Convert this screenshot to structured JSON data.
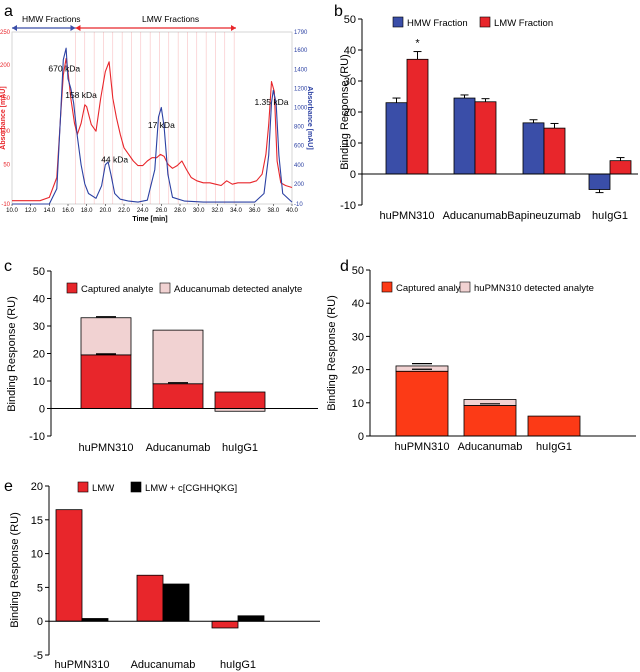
{
  "panels": {
    "a": "a",
    "b": "b",
    "c": "c",
    "d": "d",
    "e": "e"
  },
  "colors": {
    "red": "#e8262b",
    "blue": "#3a4ea8",
    "pink": "#f1d2d2",
    "orange_red": "#fc3a16",
    "black": "#000000",
    "chrom_red": "#e8262b",
    "chrom_blue": "#2c41a3"
  },
  "chart_data": [
    {
      "id": "a",
      "type": "line",
      "title": "",
      "xlabel": "Time [min]",
      "ylabel_left": "Absorbance [mAU]",
      "ylabel_right": "Absorbance [mAU]",
      "xlim": [
        10.0,
        40.0
      ],
      "ylim_left": [
        -10,
        250
      ],
      "ylim_right": [
        -10,
        1790
      ],
      "x_ticks": [
        "10.0",
        "12.0",
        "14.0",
        "16.0",
        "18.0",
        "20.0",
        "22.0",
        "24.0",
        "26.0",
        "28.0",
        "30.0",
        "32.0",
        "34.0",
        "36.0",
        "38.0",
        "40.0"
      ],
      "y_ticks_left": [
        "-10",
        "50",
        "100",
        "150",
        "200",
        "250"
      ],
      "y_ticks_right": [
        "-10",
        "200",
        "400",
        "600",
        "800",
        "1000",
        "1200",
        "1400",
        "1600",
        "1790"
      ],
      "fraction_labels": {
        "hmw": "HMW Fractions",
        "lmw": "LMW Fractions"
      },
      "fraction_ranges": {
        "hmw": [
          10.0,
          16.8
        ],
        "lmw": [
          16.8,
          34.0
        ]
      },
      "fraction_lines_x": [
        16.8,
        17.8,
        18.8,
        19.8,
        20.8,
        21.8,
        22.8,
        23.8,
        24.8,
        25.8,
        26.8,
        27.8,
        28.8,
        29.8,
        30.8,
        31.8,
        32.8,
        33.8
      ],
      "annotations": [
        {
          "text": "670 kDa",
          "x": 15.6,
          "y": 190
        },
        {
          "text": "158 kDa",
          "x": 17.4,
          "y": 150
        },
        {
          "text": "44 kDa",
          "x": 21.0,
          "y": 53
        },
        {
          "text": "17 kDa",
          "x": 26.0,
          "y": 105
        },
        {
          "text": "1.35 kDa",
          "x": 37.8,
          "y": 140
        }
      ],
      "series": [
        {
          "name": "Absorbance (red, left axis)",
          "color": "#e8262b",
          "axis": "left",
          "x": [
            10.0,
            13.0,
            14.0,
            14.8,
            15.2,
            15.5,
            15.8,
            16.0,
            16.3,
            16.7,
            17.0,
            17.4,
            17.8,
            18.0,
            18.5,
            19.0,
            19.5,
            20.0,
            20.4,
            20.8,
            21.2,
            21.6,
            22.0,
            22.5,
            23.0,
            23.5,
            24.0,
            24.5,
            25.0,
            25.5,
            25.9,
            26.3,
            26.7,
            27.2,
            27.7,
            28.2,
            28.7,
            29.2,
            29.8,
            30.5,
            31.2,
            31.8,
            32.4,
            33.0,
            33.6,
            34.2,
            34.8,
            35.5,
            36.2,
            36.8,
            37.2,
            37.5,
            37.8,
            38.1,
            38.4,
            38.8,
            39.3,
            40.0
          ],
          "y": [
            -5,
            -5,
            0,
            30,
            120,
            185,
            210,
            190,
            150,
            112,
            95,
            112,
            140,
            137,
            110,
            100,
            150,
            190,
            205,
            150,
            120,
            95,
            75,
            65,
            55,
            48,
            48,
            55,
            60,
            60,
            65,
            62,
            50,
            44,
            48,
            55,
            42,
            30,
            25,
            22,
            22,
            20,
            18,
            25,
            20,
            22,
            22,
            22,
            25,
            35,
            65,
            110,
            175,
            160,
            55,
            22,
            18,
            15
          ]
        },
        {
          "name": "Absorbance (blue, right axis)",
          "color": "#2c41a3",
          "axis": "right",
          "x": [
            10.0,
            14.0,
            14.8,
            15.2,
            15.5,
            15.8,
            16.0,
            16.3,
            16.6,
            17.0,
            17.4,
            17.8,
            18.2,
            19.0,
            19.6,
            20.0,
            20.3,
            20.6,
            21.0,
            21.6,
            22.5,
            23.5,
            24.5,
            25.3,
            25.7,
            26.0,
            26.3,
            26.7,
            27.2,
            28.5,
            30.5,
            33.0,
            36.0,
            37.0,
            37.5,
            37.8,
            38.0,
            38.3,
            38.6,
            39.0,
            40.0
          ],
          "y": [
            -10,
            -10,
            150,
            900,
            1500,
            1620,
            1300,
            1200,
            1050,
            700,
            400,
            200,
            100,
            50,
            180,
            400,
            430,
            300,
            100,
            40,
            20,
            10,
            30,
            350,
            900,
            1000,
            800,
            300,
            60,
            20,
            10,
            10,
            10,
            100,
            500,
            1050,
            1180,
            1050,
            500,
            100,
            10
          ]
        }
      ]
    },
    {
      "id": "b",
      "type": "bar",
      "title": "",
      "xlabel": "",
      "ylabel": "Binding Response (RU)",
      "ylim": [
        -10,
        50
      ],
      "y_ticks": [
        "-10",
        "0",
        "10",
        "20",
        "30",
        "40",
        "50"
      ],
      "categories": [
        "huPMN310",
        "Aducanumab",
        "Bapineuzumab",
        "huIgG1"
      ],
      "series": [
        {
          "name": "HMW Fraction",
          "color": "#3a4ea8",
          "values": [
            23,
            24.5,
            16.5,
            -5
          ],
          "errors": [
            1.5,
            1.0,
            1.0,
            1.0
          ]
        },
        {
          "name": "LMW Fraction",
          "color": "#e8262b",
          "values": [
            37,
            23.3,
            14.8,
            4.3
          ],
          "errors": [
            2.5,
            1.0,
            1.5,
            1.0
          ]
        }
      ],
      "annotations": [
        {
          "text": "*",
          "category": "huPMN310",
          "series": "LMW Fraction"
        }
      ],
      "legend_placement": "top"
    },
    {
      "id": "c",
      "type": "bar",
      "stacked": true,
      "title": "",
      "xlabel": "",
      "ylabel": "Binding Response (RU)",
      "ylim": [
        -10,
        50
      ],
      "y_ticks": [
        "-10",
        "0",
        "10",
        "20",
        "30",
        "40",
        "50"
      ],
      "categories": [
        "huPMN310",
        "Aducanumab",
        "huIgG1"
      ],
      "series": [
        {
          "name": "Captured analyte",
          "color": "#e8262b",
          "values": [
            19.5,
            9,
            6
          ]
        },
        {
          "name": "Aducanumab detected analyte",
          "color": "#f1d2d2",
          "values": [
            13.5,
            19.5,
            -1
          ]
        }
      ],
      "legend_placement": "top"
    },
    {
      "id": "d",
      "type": "bar",
      "stacked": true,
      "title": "",
      "xlabel": "",
      "ylabel": "Binding Response (RU)",
      "ylim": [
        0,
        50
      ],
      "y_ticks": [
        "0",
        "10",
        "20",
        "30",
        "40",
        "50"
      ],
      "categories": [
        "huPMN310",
        "Aducanumab",
        "huIgG1"
      ],
      "series": [
        {
          "name": "Captured analyte",
          "color": "#fc3a16",
          "values": [
            19.5,
            9.2,
            6
          ]
        },
        {
          "name": "huPMN310 detected analyte",
          "color": "#f1d2d2",
          "values": [
            1.6,
            1.8,
            0
          ]
        }
      ],
      "legend_placement": "top"
    },
    {
      "id": "e",
      "type": "bar",
      "title": "",
      "xlabel": "",
      "ylabel": "Binding Response (RU)",
      "ylim": [
        -5,
        20
      ],
      "y_ticks": [
        "-5",
        "0",
        "5",
        "10",
        "15",
        "20"
      ],
      "categories": [
        "huPMN310",
        "Aducanumab",
        "huIgG1"
      ],
      "series": [
        {
          "name": "LMW",
          "color": "#e8262b",
          "values": [
            16.5,
            6.8,
            -1.0
          ]
        },
        {
          "name": "LMW + c[CGHHQKG]",
          "color": "#000000",
          "values": [
            0.4,
            5.5,
            0.8
          ]
        }
      ],
      "legend_placement": "top"
    }
  ]
}
